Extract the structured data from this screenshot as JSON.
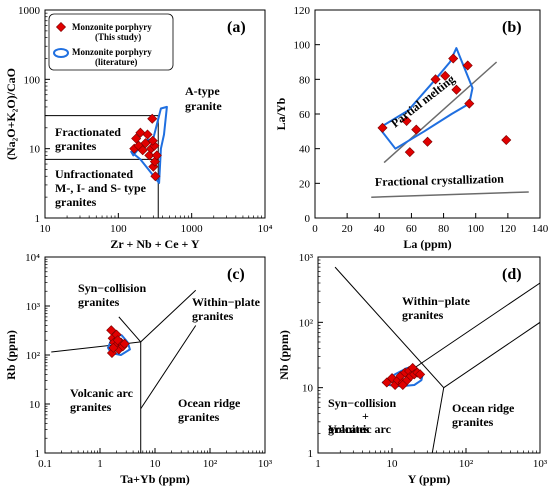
{
  "chart_data": [
    {
      "type": "scatter",
      "panel": "(a)",
      "xlabel": "Zr + Nb + Ce + Y",
      "ylabel": "(Na₂O+K₂O)/CaO",
      "xscale": "log",
      "yscale": "log",
      "xlim": [
        10,
        10000
      ],
      "ylim": [
        1,
        1000
      ],
      "xticks": [
        "10",
        "100",
        "1000",
        "10⁴"
      ],
      "yticks": [
        "1",
        "10",
        "100",
        "1000"
      ],
      "legend": {
        "position": "top-left",
        "entries": [
          {
            "label": "Monzonite porphyry",
            "sub": "(This study)",
            "marker": "diamond",
            "color": "#e00000"
          },
          {
            "label": "Monzonite porphyry",
            "sub": "(literature)",
            "marker": "outline",
            "color": "#1f6fe0"
          }
        ]
      },
      "regions": [
        "A-type granite",
        "Fractionated granites",
        "Unfractionated M-, I- and S- type granites"
      ],
      "boundaries": [
        {
          "x": [
            10,
            350
          ],
          "y": [
            30,
            30
          ]
        },
        {
          "x": [
            10,
            350
          ],
          "y": [
            7,
            7
          ]
        },
        {
          "x": [
            350,
            350
          ],
          "y": [
            1,
            30
          ]
        }
      ],
      "series": [
        {
          "marker": "diamond",
          "color": "#e00000",
          "x": [
            165,
            175,
            190,
            200,
            215,
            235,
            250,
            265,
            280,
            310,
            295,
            300,
            315,
            320,
            335,
            290
          ],
          "y": [
            10,
            14,
            11,
            17,
            9.5,
            12,
            16,
            8,
            10,
            11,
            13,
            5.5,
            6.5,
            4,
            8,
            27
          ]
        }
      ],
      "outline": {
        "x": [
          160,
          230,
          300,
          380,
          460,
          420,
          380,
          360,
          280,
          200,
          150
        ],
        "y": [
          8,
          13,
          14,
          38,
          40,
          16,
          10,
          3.2,
          4.5,
          7,
          9
        ]
      }
    },
    {
      "type": "scatter",
      "panel": "(b)",
      "xlabel": "La (ppm)",
      "ylabel": "La/Yb",
      "xlim": [
        0,
        140
      ],
      "ylim": [
        0,
        120
      ],
      "xticks": [
        "0",
        "20",
        "40",
        "60",
        "80",
        "100",
        "120",
        "140"
      ],
      "yticks": [
        "0",
        "20",
        "40",
        "60",
        "80",
        "100",
        "120"
      ],
      "annotations": [
        "Partial melting",
        "Fractional crystallization"
      ],
      "lines": [
        {
          "name": "partial-melting-trend",
          "x": [
            43,
            113
          ],
          "y": [
            32,
            90
          ]
        },
        {
          "name": "fractional-crystallization-trend",
          "x": [
            35,
            133
          ],
          "y": [
            12,
            15
          ]
        }
      ],
      "series": [
        {
          "marker": "diamond",
          "color": "#e00000",
          "x": [
            42,
            57,
            59,
            63,
            70,
            75,
            81,
            86,
            88,
            95,
            96,
            119
          ],
          "y": [
            52,
            56,
            38,
            51,
            44,
            80,
            82,
            92,
            74,
            88,
            66,
            45
          ]
        }
      ],
      "outline": {
        "x": [
          40,
          58,
          75,
          84,
          88,
          98,
          96,
          85,
          68,
          50,
          40
        ],
        "y": [
          52,
          62,
          80,
          90,
          98,
          75,
          66,
          60,
          50,
          40,
          52
        ]
      }
    },
    {
      "type": "scatter",
      "panel": "(c)",
      "xlabel": "Ta+Yb (ppm)",
      "ylabel": "Rb (ppm)",
      "xscale": "log",
      "yscale": "log",
      "xlim": [
        0.1,
        1000
      ],
      "ylim": [
        1,
        10000
      ],
      "xticks": [
        "0.1",
        "1",
        "10",
        "10²",
        "10³"
      ],
      "yticks": [
        "1",
        "10",
        "10²",
        "10³",
        "10⁴"
      ],
      "regions": [
        "Syn-collision granites",
        "Within-plate granites",
        "Volcanic arc granites",
        "Ocean ridge granites"
      ],
      "boundaries": [
        {
          "x": [
            0.13,
            5.5
          ],
          "y": [
            115,
            185
          ]
        },
        {
          "x": [
            5.5,
            55
          ],
          "y": [
            185,
            2100
          ]
        },
        {
          "x": [
            5.5,
            5.5
          ],
          "y": [
            1,
            185
          ]
        },
        {
          "x": [
            5.5,
            55
          ],
          "y": [
            8,
            400
          ]
        },
        {
          "x": [
            2.2,
            5.5
          ],
          "y": [
            600,
            185
          ]
        }
      ],
      "series": [
        {
          "marker": "diamond",
          "color": "#e00000",
          "x": [
            1.6,
            1.7,
            1.8,
            1.9,
            2.0,
            2.2,
            2.4,
            2.6,
            2.8,
            1.65,
            1.75,
            2.1
          ],
          "y": [
            320,
            220,
            180,
            150,
            260,
            130,
            180,
            150,
            170,
            110,
            140,
            200
          ]
        }
      ],
      "outline": {
        "x": [
          1.4,
          1.8,
          2.5,
          3.2,
          3.5,
          2.4,
          1.6,
          1.4
        ],
        "y": [
          140,
          280,
          250,
          180,
          130,
          100,
          110,
          140
        ]
      }
    },
    {
      "type": "scatter",
      "panel": "(d)",
      "xlabel": "Y (ppm)",
      "ylabel": "Nb (ppm)",
      "xscale": "log",
      "yscale": "log",
      "xlim": [
        1,
        1000
      ],
      "ylim": [
        1,
        1000
      ],
      "xticks": [
        "1",
        "10",
        "10²",
        "10³"
      ],
      "yticks": [
        "1",
        "10",
        "10²",
        "10³"
      ],
      "regions": [
        "Within-plate granites",
        "Syn-collision + Volcanic arc granites",
        "Ocean ridge granites"
      ],
      "boundaries": [
        {
          "x": [
            1.7,
            50
          ],
          "y": [
            700,
            10
          ]
        },
        {
          "x": [
            20,
            1000
          ],
          "y": [
            20,
            400
          ]
        },
        {
          "x": [
            50,
            35
          ],
          "y": [
            10,
            1
          ]
        },
        {
          "x": [
            50,
            1000
          ],
          "y": [
            10,
            100
          ]
        }
      ],
      "series": [
        {
          "marker": "diamond",
          "color": "#e00000",
          "x": [
            8.5,
            10,
            11,
            12,
            13,
            14,
            15,
            16,
            17,
            18,
            19,
            20,
            22,
            24,
            14
          ],
          "y": [
            12,
            14,
            11,
            13,
            15,
            12,
            17,
            13,
            18,
            15,
            20,
            16,
            17,
            16,
            11
          ]
        }
      ],
      "outline": {
        "x": [
          7.5,
          11,
          16,
          22,
          26,
          25,
          20,
          13,
          9,
          7.5
        ],
        "y": [
          12,
          16,
          20,
          19,
          16,
          13,
          11,
          10.5,
          11,
          12
        ]
      }
    }
  ]
}
